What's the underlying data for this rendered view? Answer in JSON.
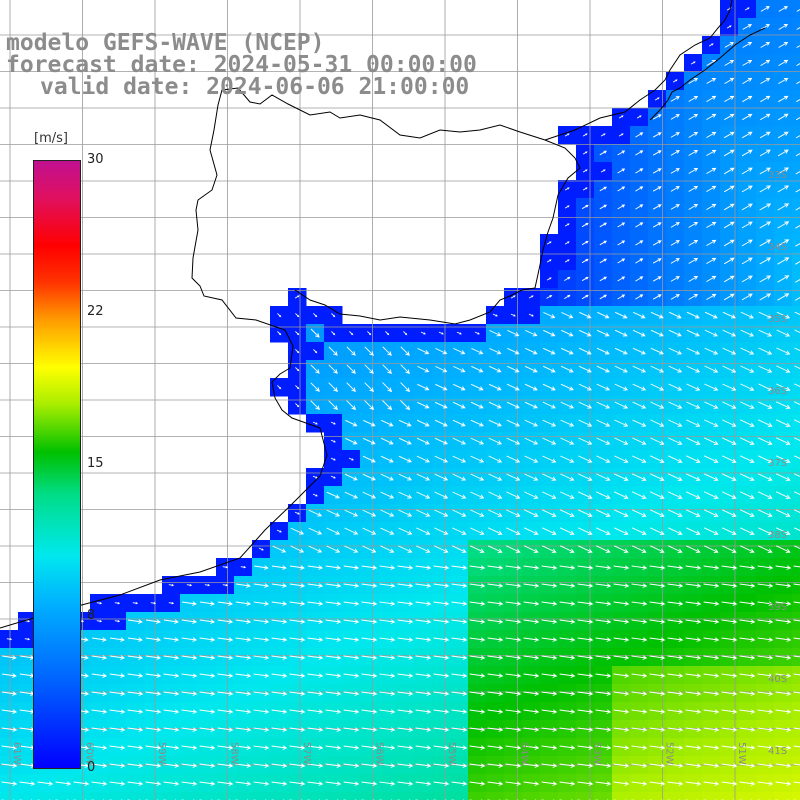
{
  "title": {
    "line1": "modelo GEFS-WAVE (NCEP)",
    "line2": "forecast date: 2024-05-31 00:00:00",
    "line3": "valid date: 2024-06-06 21:00:00"
  },
  "legend": {
    "unit": "[m/s]",
    "min": 0,
    "max": 30,
    "ticks": [
      "30",
      "22",
      "15",
      "8",
      "0"
    ],
    "colors": [
      "#0000ff",
      "#00b0ff",
      "#00e8ee",
      "#00c000",
      "#ffff00",
      "#ff9900",
      "#ff0000",
      "#c01090"
    ]
  },
  "map": {
    "variable": "wind speed and direction",
    "lat_labels": [
      "33S",
      "34S",
      "35S",
      "36S",
      "37S",
      "38S",
      "39S",
      "40S",
      "41S"
    ],
    "lon_labels": [
      "61W",
      "60W",
      "59W",
      "58W",
      "57W",
      "56W",
      "55W",
      "54W",
      "53W",
      "52W",
      "51W"
    ],
    "land_color": "#ffffff",
    "grid_color": "#9a9a9a",
    "coast_color": "#000000"
  }
}
